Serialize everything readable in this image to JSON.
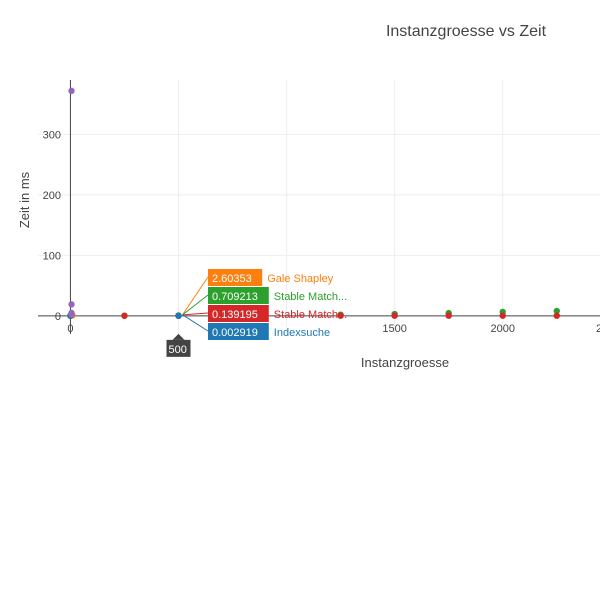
{
  "chart_data": {
    "type": "scatter",
    "title": "Instanzgroesse vs Zeit",
    "xlabel": "Instanzgroesse",
    "ylabel": "Zeit in ms",
    "xlim": [
      -150,
      2450
    ],
    "ylim": [
      -30,
      390
    ],
    "x_ticks": [
      0,
      1500,
      2000
    ],
    "x_tick_labels": [
      "0",
      "1500",
      "2000"
    ],
    "x_tick_partial_label": "2",
    "y_ticks": [
      0,
      100,
      200,
      300
    ],
    "y_tick_labels": [
      "0",
      "100",
      "200",
      "300"
    ],
    "grid": true,
    "legend": "none",
    "series": [
      {
        "name": "Gale Shapley",
        "color": "#ff7f0e",
        "x": [
          0,
          5,
          10
        ],
        "y": [
          0.5,
          1.2,
          0.8
        ]
      },
      {
        "name": "Stable Match...",
        "color": "#2ca02c",
        "x": [
          0,
          250,
          500,
          1250,
          1500,
          1750,
          2000,
          2250
        ],
        "y": [
          0.3,
          0.2,
          0.7,
          2.0,
          3.0,
          4.5,
          6.5,
          8.0
        ]
      },
      {
        "name": "Stable Match...",
        "color": "#d62728",
        "x": [
          0,
          250,
          500,
          1250,
          1500,
          1750,
          2000,
          2250
        ],
        "y": [
          0.1,
          0.1,
          0.14,
          0.2,
          0.2,
          0.3,
          0.3,
          0.3
        ]
      },
      {
        "name": "Indexsuche",
        "color": "#1f77b4",
        "x": [
          0,
          500
        ],
        "y": [
          0.0,
          0.003
        ]
      },
      {
        "name": "",
        "color": "#9467bd",
        "x": [
          5,
          5,
          5,
          5
        ],
        "y": [
          372,
          19,
          5,
          2
        ]
      }
    ],
    "hover": {
      "x_label": "500",
      "x_value": 500,
      "entries": [
        {
          "value": "2.60353",
          "name": "Gale Shapley",
          "color": "#ff7f0e"
        },
        {
          "value": "0.709213",
          "name": "Stable Match...",
          "color": "#2ca02c"
        },
        {
          "value": "0.139195",
          "name": "Stable Match...",
          "color": "#d62728"
        },
        {
          "value": "0.002919",
          "name": "Indexsuche",
          "color": "#1f77b4"
        }
      ]
    }
  }
}
